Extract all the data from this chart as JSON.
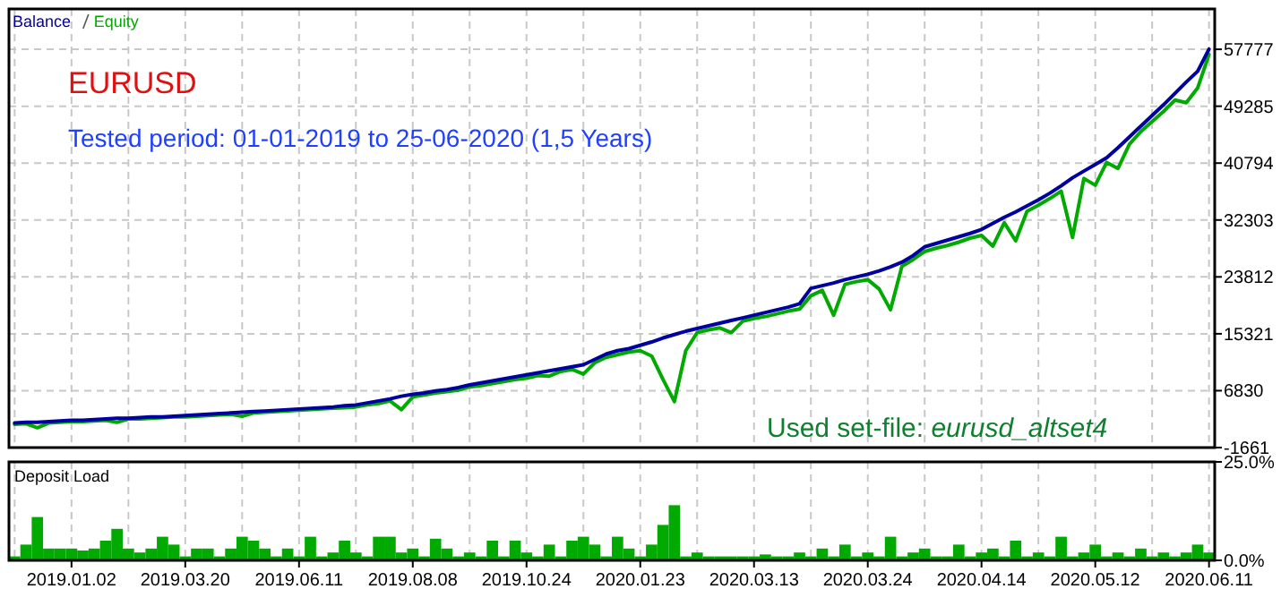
{
  "chart_data": [
    {
      "type": "line",
      "annotations": [
        "EURUSD",
        "Tested period: 01-01-2019 to 25-06-2020 (1,5 Years)",
        "Used set-file: eurusd_altset4"
      ],
      "categories": [
        null,
        null,
        null,
        null,
        null,
        "2019.01.02",
        null,
        null,
        null,
        null,
        null,
        null,
        null,
        null,
        null,
        "2019.03.20",
        null,
        null,
        null,
        null,
        null,
        null,
        null,
        null,
        null,
        "2019.06.11",
        null,
        null,
        null,
        null,
        null,
        null,
        null,
        null,
        null,
        "2019.08.08",
        null,
        null,
        null,
        null,
        null,
        null,
        null,
        null,
        null,
        "2019.10.24",
        null,
        null,
        null,
        null,
        null,
        null,
        null,
        null,
        null,
        "2020.01.23",
        null,
        null,
        null,
        null,
        null,
        null,
        null,
        null,
        null,
        "2020.03.13",
        null,
        null,
        null,
        null,
        null,
        null,
        null,
        null,
        null,
        "2020.03.24",
        null,
        null,
        null,
        null,
        null,
        null,
        null,
        null,
        null,
        "2020.04.14",
        null,
        null,
        null,
        null,
        null,
        null,
        null,
        null,
        null,
        "2020.05.12",
        null,
        null,
        null,
        null,
        null,
        null,
        null,
        null,
        null,
        "2020.06.11"
      ],
      "series": [
        {
          "name": "Equity",
          "color": "#00aa00",
          "values": [
            1800,
            1900,
            1300,
            2000,
            2100,
            2200,
            2200,
            2300,
            2400,
            2100,
            2600,
            2600,
            2700,
            2800,
            2900,
            2900,
            3000,
            3100,
            3200,
            3300,
            3000,
            3500,
            3600,
            3700,
            3800,
            3900,
            4000,
            4100,
            4200,
            4300,
            4400,
            4700,
            4900,
            5300,
            4000,
            5900,
            6200,
            6500,
            6700,
            6900,
            7400,
            7600,
            7900,
            8200,
            8500,
            8700,
            9100,
            9000,
            9700,
            10000,
            9300,
            11000,
            11800,
            12200,
            12600,
            12800,
            12000,
            8500,
            5200,
            12800,
            15500,
            15900,
            16200,
            15500,
            17200,
            17600,
            17900,
            18300,
            18700,
            19000,
            21000,
            21800,
            18100,
            22700,
            23100,
            23400,
            22000,
            18900,
            25400,
            26400,
            27600,
            28100,
            28500,
            29000,
            29600,
            30000,
            28400,
            31900,
            29200,
            33600,
            34500,
            35500,
            36600,
            29700,
            38500,
            37500,
            40900,
            40000,
            43600,
            45500,
            47000,
            48500,
            50200,
            49800,
            52000,
            57000
          ]
        },
        {
          "name": "Balance",
          "color": "#0000a0",
          "values": [
            2000,
            2100,
            2100,
            2200,
            2300,
            2400,
            2400,
            2500,
            2600,
            2700,
            2700,
            2800,
            2900,
            2900,
            3000,
            3100,
            3200,
            3300,
            3400,
            3500,
            3600,
            3700,
            3800,
            3900,
            4000,
            4100,
            4200,
            4300,
            4400,
            4600,
            4700,
            5000,
            5300,
            5600,
            6000,
            6300,
            6500,
            6800,
            7000,
            7300,
            7700,
            8000,
            8300,
            8600,
            8900,
            9200,
            9500,
            9800,
            10100,
            10400,
            10700,
            11500,
            12300,
            12800,
            13100,
            13600,
            14100,
            14700,
            15200,
            15700,
            16100,
            16500,
            16900,
            17300,
            17700,
            18100,
            18500,
            18900,
            19300,
            19800,
            22100,
            22500,
            22900,
            23400,
            23800,
            24200,
            24700,
            25300,
            26000,
            27000,
            28300,
            28800,
            29300,
            29800,
            30300,
            30900,
            31800,
            32700,
            33500,
            34400,
            35300,
            36300,
            37400,
            38600,
            39600,
            40600,
            41600,
            43100,
            44700,
            46300,
            47900,
            49500,
            51200,
            52900,
            54500,
            57800
          ]
        }
      ],
      "ylim": [
        -1661,
        63800
      ],
      "yticks": [
        -1661,
        6830,
        15321,
        23812,
        32303,
        40794,
        49285,
        57777
      ],
      "grid": true,
      "legend": "top left",
      "tick_labels": "y"
    },
    {
      "type": "bar",
      "title": "Deposit Load",
      "categories": [
        null,
        null,
        null,
        null,
        null,
        "2019.01.02",
        null,
        null,
        null,
        null,
        null,
        null,
        null,
        null,
        null,
        "2019.03.20",
        null,
        null,
        null,
        null,
        null,
        null,
        null,
        null,
        null,
        "2019.06.11",
        null,
        null,
        null,
        null,
        null,
        null,
        null,
        null,
        null,
        "2019.08.08",
        null,
        null,
        null,
        null,
        null,
        null,
        null,
        null,
        null,
        "2019.10.24",
        null,
        null,
        null,
        null,
        null,
        null,
        null,
        null,
        null,
        "2020.01.23",
        null,
        null,
        null,
        null,
        null,
        null,
        null,
        null,
        null,
        "2020.03.13",
        null,
        null,
        null,
        null,
        null,
        null,
        null,
        null,
        null,
        "2020.03.24",
        null,
        null,
        null,
        null,
        null,
        null,
        null,
        null,
        null,
        "2020.04.14",
        null,
        null,
        null,
        null,
        null,
        null,
        null,
        null,
        null,
        "2020.05.12",
        null,
        null,
        null,
        null,
        null,
        null,
        null,
        null,
        null,
        "2020.06.11"
      ],
      "color": "#00aa00",
      "values": [
        1,
        4,
        11,
        3,
        3,
        3,
        2.5,
        3,
        5,
        8,
        3,
        2,
        3,
        6,
        4,
        1,
        3,
        3,
        1,
        3,
        6,
        5,
        3,
        1,
        3,
        1,
        6,
        1,
        2,
        5,
        2,
        1,
        6,
        6,
        2,
        3,
        1,
        5.5,
        3,
        1,
        2,
        1,
        5,
        1,
        5,
        2,
        1,
        4,
        1,
        5,
        6,
        4,
        1,
        6,
        3,
        1,
        4,
        9,
        14,
        1,
        2,
        1,
        1,
        1,
        1,
        1,
        1.5,
        1,
        1,
        2,
        1,
        3,
        1,
        4,
        1,
        2,
        1,
        6,
        1,
        2,
        3,
        1,
        1,
        4,
        1,
        2,
        3,
        1,
        5,
        1,
        2,
        1,
        6,
        1,
        2,
        4,
        1,
        2,
        1,
        3,
        1,
        2,
        1,
        2,
        4,
        2
      ],
      "ylim": [
        0,
        25
      ],
      "yticks": [
        {
          "value": 0,
          "label": "0.0%"
        },
        {
          "value": 25,
          "label": "25.0%"
        }
      ],
      "grid": true
    }
  ]
}
